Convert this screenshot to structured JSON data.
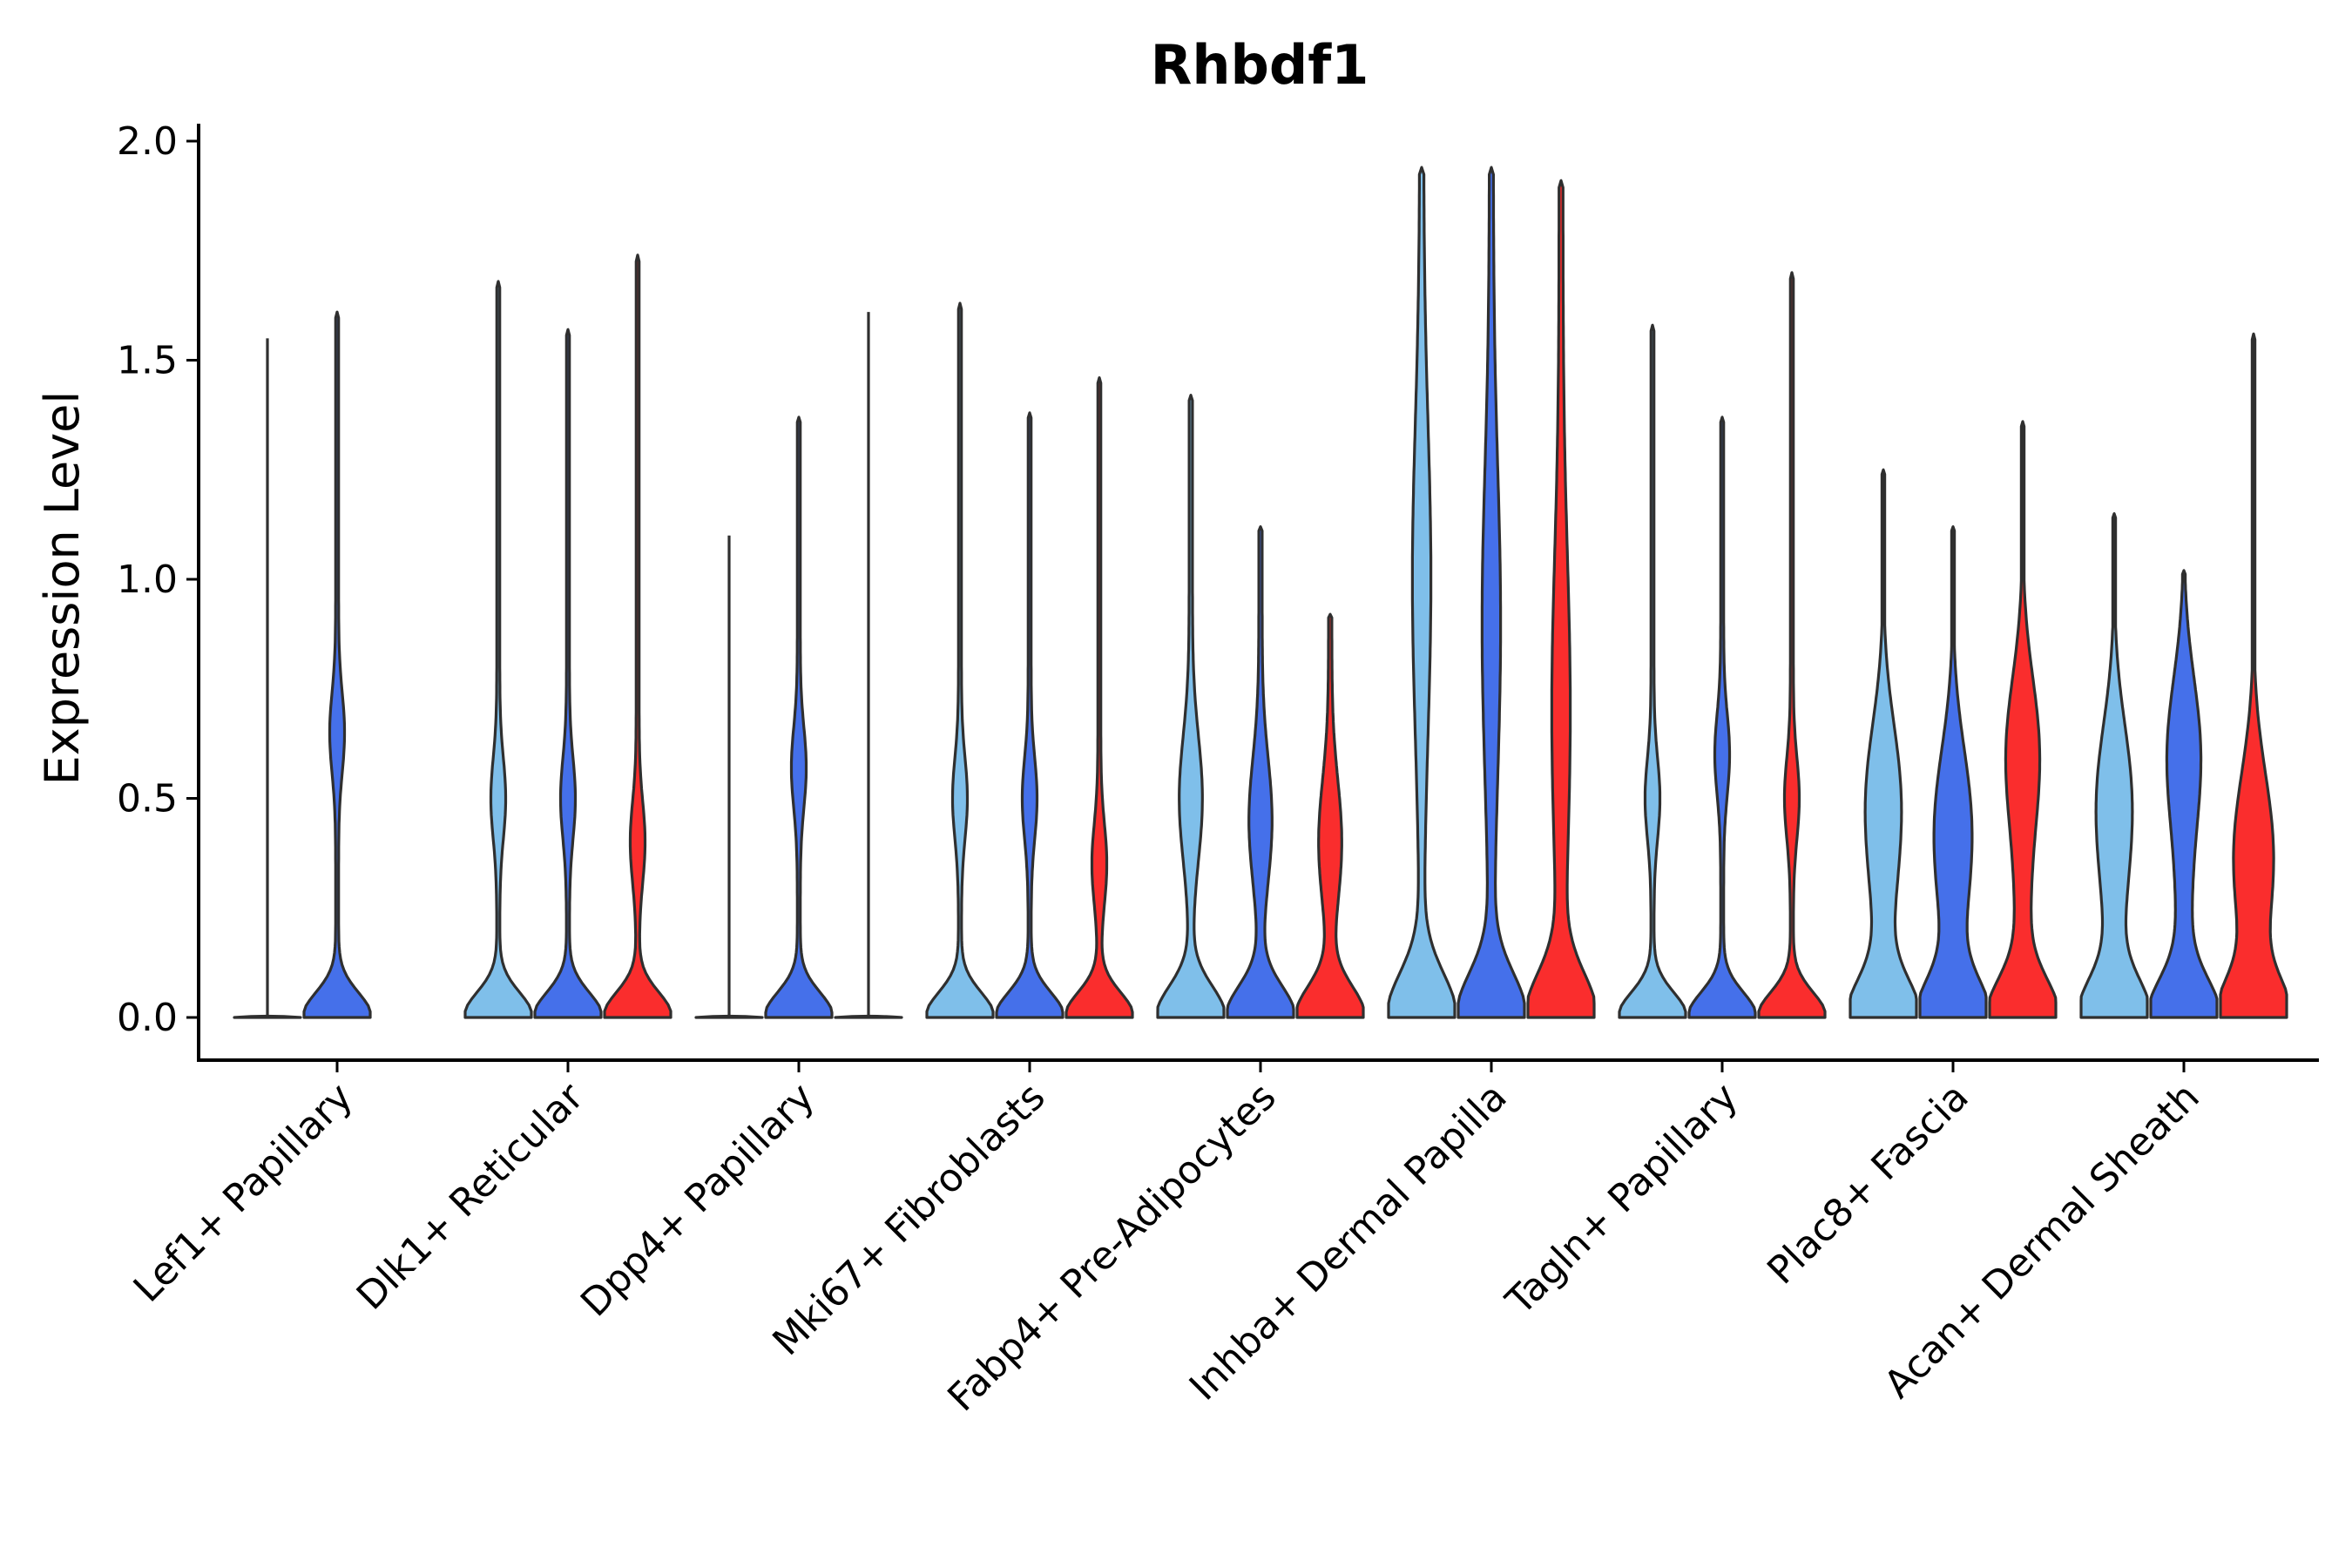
{
  "chart_data": {
    "type": "violin",
    "title": "Rhbdf1",
    "xlabel": "",
    "ylabel": "Expression Level",
    "ylim": [
      -0.1,
      2.03
    ],
    "yticks": [
      "0.0",
      "0.5",
      "1.0",
      "1.5",
      "2.0"
    ],
    "ytick_values": [
      0.0,
      0.5,
      1.0,
      1.5,
      2.0
    ],
    "groups": [
      "Lef1+ Papillary",
      "Dlk1+ Reticular",
      "Dpp4+ Papillary",
      "Mki67+ Fibroblasts",
      "Fabp4+ Pre-Adipocytes",
      "Inhba+ Dermal Papilla",
      "Tagln+ Papillary",
      "Plac8+ Fascia",
      "Acan+ Dermal Sheath"
    ],
    "series_colors": [
      "#7fbfea",
      "#4570ea",
      "#fa2d2d"
    ],
    "violins": [
      [
        {
          "max": 1.55,
          "shape": "flat"
        },
        {
          "max": 1.61,
          "shape": "spike",
          "bump": 0.65
        },
        null
      ],
      [
        {
          "max": 1.68,
          "shape": "spike",
          "bump": 0.5
        },
        {
          "max": 1.57,
          "shape": "spike",
          "bump": 0.5
        },
        {
          "max": 1.74,
          "shape": "spike",
          "bump": 0.4
        }
      ],
      [
        {
          "max": 1.1,
          "shape": "flat"
        },
        {
          "max": 1.37,
          "shape": "spike",
          "bump": 0.57
        },
        {
          "max": 1.61,
          "shape": "flat"
        }
      ],
      [
        {
          "max": 1.63,
          "shape": "spike",
          "bump": 0.5
        },
        {
          "max": 1.38,
          "shape": "spike",
          "bump": 0.5
        },
        {
          "max": 1.46,
          "shape": "spike",
          "bump": 0.35
        }
      ],
      [
        {
          "max": 1.42,
          "shape": "medium",
          "bump": 0.5
        },
        {
          "max": 1.12,
          "shape": "medium",
          "bump": 0.45
        },
        {
          "max": 0.92,
          "shape": "medium",
          "bump": 0.4
        }
      ],
      [
        {
          "max": 1.94,
          "shape": "tall",
          "bump": 1.0
        },
        {
          "max": 1.94,
          "shape": "tall",
          "bump": 0.9
        },
        {
          "max": 1.91,
          "shape": "tall",
          "bump": 0.7
        }
      ],
      [
        {
          "max": 1.58,
          "shape": "spike",
          "bump": 0.5
        },
        {
          "max": 1.37,
          "shape": "spike",
          "bump": 0.6
        },
        {
          "max": 1.7,
          "shape": "spike",
          "bump": 0.5
        }
      ],
      [
        {
          "max": 1.25,
          "shape": "wide",
          "bump": 0.5
        },
        {
          "max": 1.12,
          "shape": "wide",
          "bump": 0.45
        },
        {
          "max": 1.36,
          "shape": "wide",
          "bump": 0.6
        }
      ],
      [
        {
          "max": 1.15,
          "shape": "wide",
          "bump": 0.5
        },
        {
          "max": 1.02,
          "shape": "wide",
          "bump": 0.6
        },
        {
          "max": 1.56,
          "shape": "wide",
          "bump": 0.4
        }
      ]
    ]
  }
}
